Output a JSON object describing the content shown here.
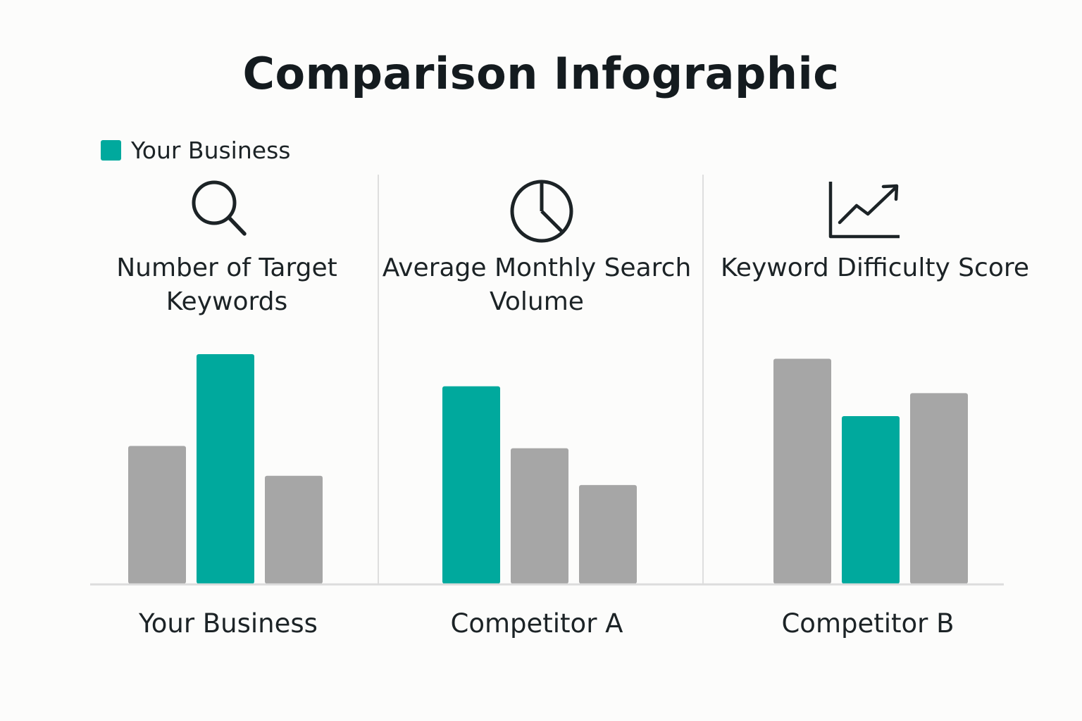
{
  "title": "Comparison Infographic",
  "legend": {
    "label": "Your Business",
    "color": "#00a99d"
  },
  "colors": {
    "highlight": "#00a99d",
    "other": "#a6a6a6",
    "divider": "#dedede",
    "baseline": "#dcdcdc"
  },
  "panels": [
    {
      "title": "Number of Target Keywords",
      "icon": "magnifier-icon"
    },
    {
      "title": "Average Monthly Search Volume",
      "icon": "pie-chart-icon"
    },
    {
      "title": "Keyword Difficulty Score",
      "icon": "trend-chart-icon"
    }
  ],
  "categories": [
    "Your Business",
    "Competitor A",
    "Competitor B"
  ],
  "chart_data": {
    "type": "bar",
    "title": "Comparison Infographic",
    "legend": [
      "Your Business"
    ],
    "legend_position": "top-left",
    "grid": false,
    "y_axis_shown": false,
    "groups": [
      {
        "metric": "Number of Target Keywords",
        "bars": [
          {
            "value": 60,
            "highlighted": false
          },
          {
            "value": 100,
            "highlighted": true
          },
          {
            "value": 47,
            "highlighted": false
          }
        ]
      },
      {
        "metric": "Average Monthly Search Volume",
        "bars": [
          {
            "value": 86,
            "highlighted": true
          },
          {
            "value": 59,
            "highlighted": false
          },
          {
            "value": 43,
            "highlighted": false
          }
        ]
      },
      {
        "metric": "Keyword Difficulty Score",
        "bars": [
          {
            "value": 98,
            "highlighted": false
          },
          {
            "value": 73,
            "highlighted": true
          },
          {
            "value": 83,
            "highlighted": false
          }
        ]
      }
    ],
    "x_labels": [
      "Your Business",
      "Competitor A",
      "Competitor B"
    ],
    "ylim": [
      0,
      100
    ]
  }
}
